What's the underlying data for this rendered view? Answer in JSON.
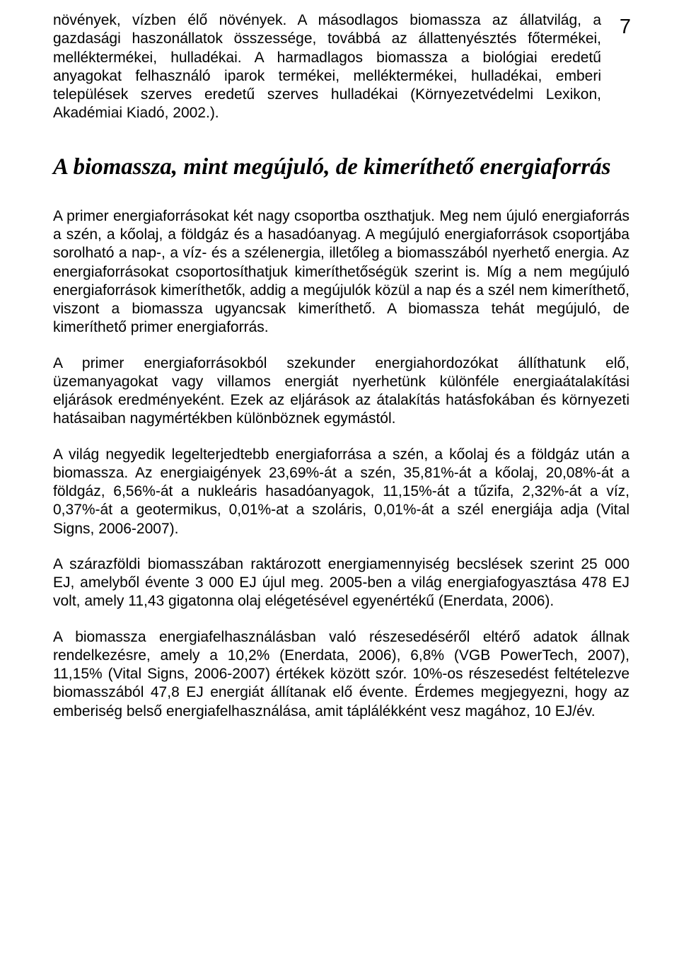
{
  "page_number": "7",
  "text_color": "#000000",
  "background_color": "#ffffff",
  "body_font_size": 21,
  "heading_font_size": 33,
  "paragraphs": {
    "p1": "növények, vízben élő növények. A másodlagos biomassza az állatvilág, a gazdasági haszonállatok összessége, továbbá az állattenyésztés főtermékei, melléktermékei, hulladékai. A harmadlagos biomassza a biológiai eredetű anyagokat felhasználó iparok termékei, melléktermékei, hulladékai, emberi települések szerves eredetű szerves hulladékai (Környezetvédelmi Lexikon, Akadémiai Kiadó, 2002.).",
    "heading": "A biomassza, mint megújuló, de kimeríthető energiaforrás",
    "p2": "A primer energiaforrásokat két nagy csoportba oszthatjuk. Meg nem újuló energiaforrás a szén, a kőolaj, a földgáz és a hasadóanyag. A megújuló energiaforrások csoportjába sorolható a nap-, a víz- és a szélenergia, illetőleg a biomasszából nyerhető energia. Az energiaforrásokat csoportosíthatjuk kimeríthetőségük szerint is. Míg a nem megújuló energiaforrások kimeríthetők, addig a megújulók közül a nap és a szél nem kimeríthető, viszont a biomassza ugyancsak kimeríthető. A biomassza tehát megújuló, de kimeríthető primer energiaforrás.",
    "p3": "A primer energiaforrásokból szekunder energiahordozókat állíthatunk elő, üzemanyagokat vagy villamos energiát nyerhetünk különféle energiaátalakítási eljárások eredményeként. Ezek az eljárások az átalakítás hatásfokában és környezeti hatásaiban nagymértékben különböznek egymástól.",
    "p4": "A világ negyedik legelterjedtebb energiaforrása a szén, a kőolaj és a föld­gáz után a biomassza. Az energiaigények 23,69%-át a szén, 35,81%-át a kőolaj, 20,08%-át a földgáz, 6,56%-át a nukleáris hasadóanyagok, 11,15%-át a tűzifa, 2,32%-át a víz, 0,37%-át a geotermikus, 0,01%-at a szoláris, 0,01%-át a szél energiája adja (Vital Signs, 2006-2007).",
    "p5": "A szárazföldi biomasszában raktározott energiamennyiség becslések szerint 25 000 EJ, amelyből évente 3 000 EJ újul meg. 2005-ben a világ energiafogyasztása 478 EJ volt, amely 11,43 gigatonna olaj elégetésével egyenértékű (Enerdata, 2006).",
    "p6": "A biomassza energiafelhasználásban való részesedéséről eltérő adatok állnak rendelkezésre, amely a 10,2% (Enerdata, 2006), 6,8% (VGB PowerTech, 2007), 11,15% (Vital Signs, 2006-2007) értékek között szór. 10%-os részesedést feltételezve biomasszából 47,8 EJ energiát állítanak elő évente. Érdemes megjegyezni, hogy az emberiség belső energiafelhasználása, amit táplálékként vesz magához, 10 EJ/év."
  }
}
